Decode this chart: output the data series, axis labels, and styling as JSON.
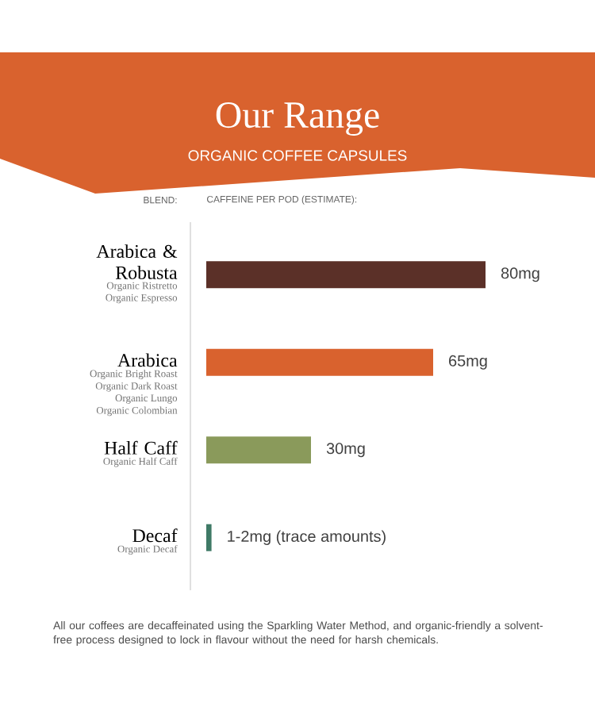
{
  "chart_data": {
    "type": "bar",
    "orientation": "horizontal",
    "title": "Our Range",
    "subtitle": "ORGANIC COFFEE CAPSULES",
    "ylabel": "BLEND:",
    "xlabel": "CAFFEINE PER POD (ESTIMATE):",
    "categories": [
      "Arabica &\nRobusta",
      "Arabica",
      "Half Caff",
      "Decaf"
    ],
    "values": [
      80,
      65,
      30,
      1.5
    ],
    "colors": [
      "#5b3028",
      "#d9622e",
      "#8a9a5b",
      "#3f7a66"
    ],
    "value_labels": [
      "80mg",
      "65mg",
      "30mg",
      "1-2mg (trace amounts)"
    ],
    "annotations": [
      "Organic Ristretto",
      "Organic Espresso",
      "Organic Bright Roast",
      "Organic Dark Roast",
      "Organic Lungo",
      "Organic Colombian",
      "Organic Half Caff",
      "Organic Decaf",
      "All our coffees are decaffeinated using the Sparkling Water Method, and organic-friendly a solvent-free process designed to lock in flavour without the need for harsh chemicals."
    ],
    "data_labels": false
  }
}
